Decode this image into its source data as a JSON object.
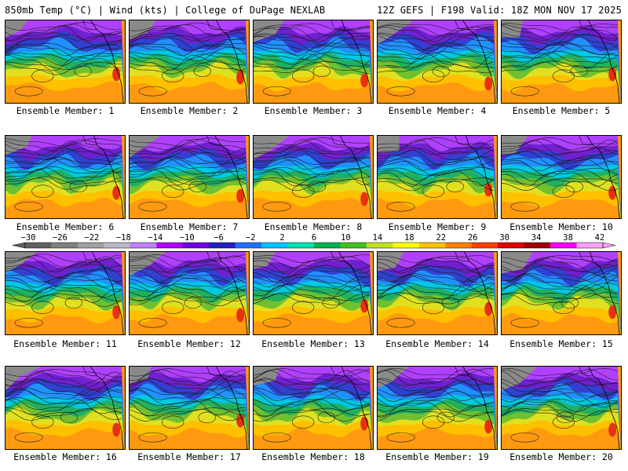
{
  "header": {
    "left": "850mb Temp (°C) | Wind (kts) | College of DuPage NEXLAB",
    "right": "12Z GEFS | F198 Valid: 18Z MON NOV 17 2025"
  },
  "colorbar": {
    "labels": [
      "-30",
      "-26",
      "-22",
      "-18",
      "-14",
      "-10",
      "-6",
      "-2",
      "2",
      "6",
      "10",
      "14",
      "18",
      "22",
      "26",
      "30",
      "34",
      "38",
      "42"
    ],
    "min": -30,
    "max": 42,
    "colors": [
      "#606060",
      "#808080",
      "#a0a0a0",
      "#b8b8c8",
      "#c080ff",
      "#b000ff",
      "#7000e0",
      "#2020c0",
      "#2070ff",
      "#00c0ff",
      "#00e0b0",
      "#00b050",
      "#40c020",
      "#c0e020",
      "#ffff00",
      "#ffc000",
      "#ff8000",
      "#ff4000",
      "#e00000",
      "#a00000",
      "#ff00ff",
      "#ffa0ff"
    ]
  },
  "members": [
    {
      "label": "Ensemble Member: 1"
    },
    {
      "label": "Ensemble Member: 2"
    },
    {
      "label": "Ensemble Member: 3"
    },
    {
      "label": "Ensemble Member: 4"
    },
    {
      "label": "Ensemble Member: 5"
    },
    {
      "label": "Ensemble Member: 6"
    },
    {
      "label": "Ensemble Member: 7"
    },
    {
      "label": "Ensemble Member: 8"
    },
    {
      "label": "Ensemble Member: 9"
    },
    {
      "label": "Ensemble Member: 10"
    },
    {
      "label": "Ensemble Member: 11"
    },
    {
      "label": "Ensemble Member: 12"
    },
    {
      "label": "Ensemble Member: 13"
    },
    {
      "label": "Ensemble Member: 14"
    },
    {
      "label": "Ensemble Member: 15"
    },
    {
      "label": "Ensemble Member: 16"
    },
    {
      "label": "Ensemble Member: 17"
    },
    {
      "label": "Ensemble Member: 18"
    },
    {
      "label": "Ensemble Member: 19"
    },
    {
      "label": "Ensemble Member: 20"
    }
  ]
}
